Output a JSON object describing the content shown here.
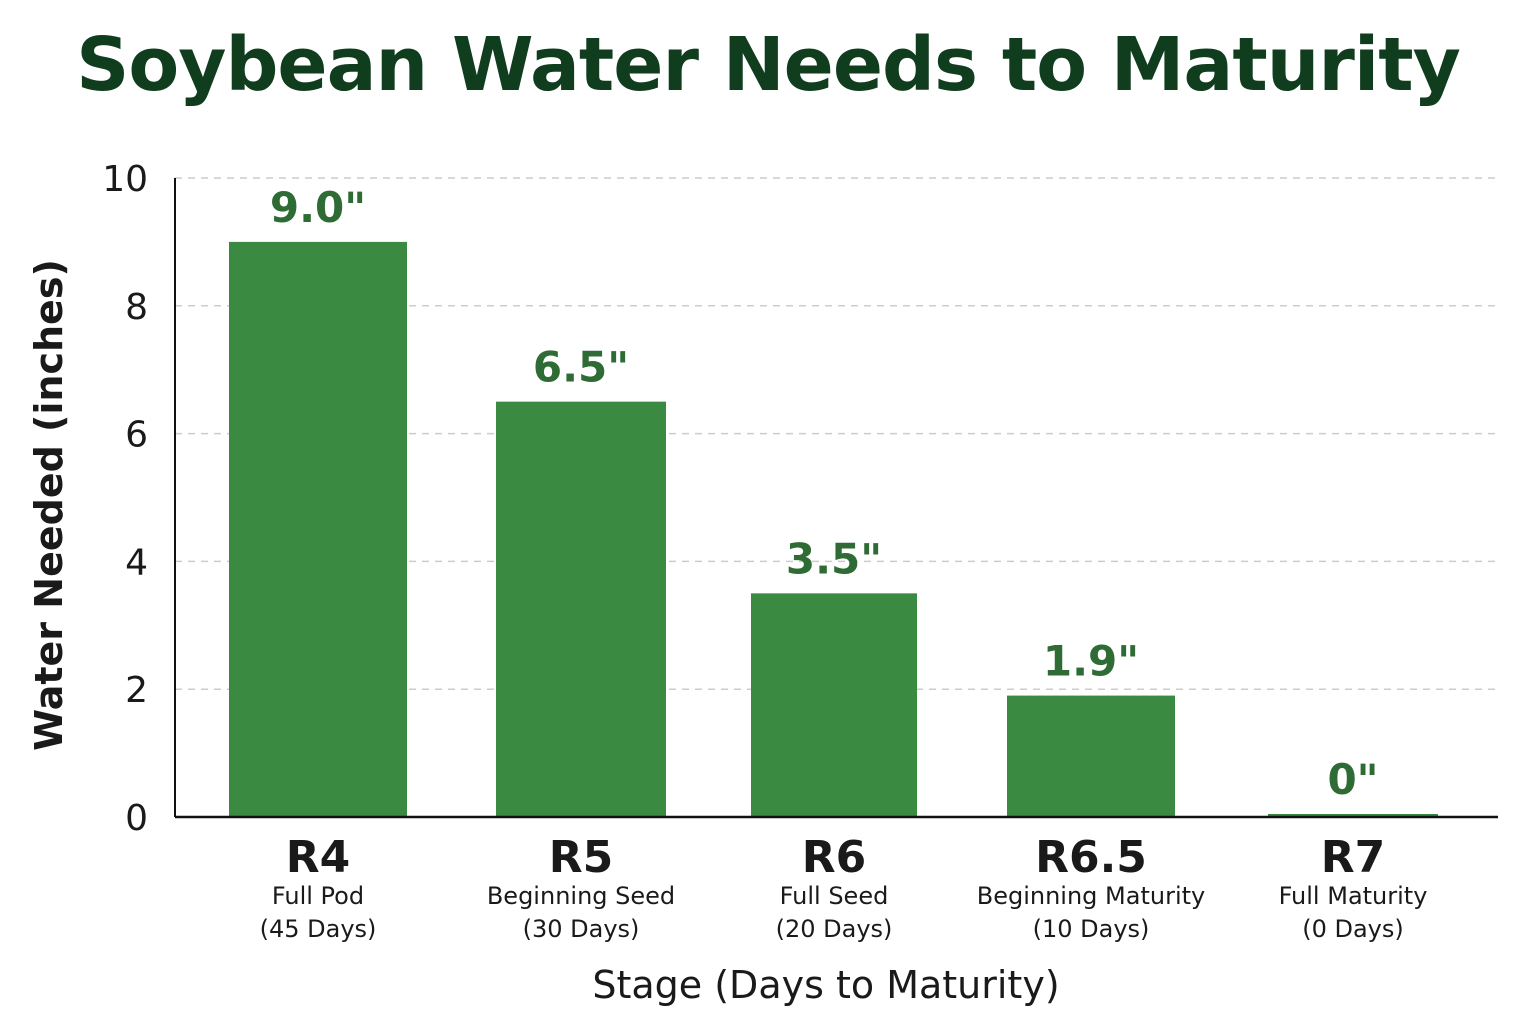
{
  "chart_data": {
    "type": "bar",
    "title": "Soybean Water Needs to Maturity",
    "xlabel": "Stage (Days to Maturity)",
    "ylabel": "Water Needed (inches)",
    "ylim": [
      0,
      10
    ],
    "yticks": [
      0,
      2,
      4,
      6,
      8,
      10
    ],
    "grid": true,
    "categories": [
      {
        "code": "R4",
        "name": "Full Pod",
        "days": "(45 Days)"
      },
      {
        "code": "R5",
        "name": "Beginning Seed",
        "days": "(30 Days)"
      },
      {
        "code": "R6",
        "name": "Full Seed",
        "days": "(20 Days)"
      },
      {
        "code": "R6.5",
        "name": "Beginning Maturity",
        "days": "(10 Days)"
      },
      {
        "code": "R7",
        "name": "Full Maturity",
        "days": "(0 Days)"
      }
    ],
    "values": [
      9.0,
      6.5,
      3.5,
      1.9,
      0
    ],
    "value_labels": [
      "9.0\"",
      "6.5\"",
      "3.5\"",
      "1.9\"",
      "0\""
    ],
    "colors": {
      "bar": "#3a8a41",
      "value_label": "#2e6b35",
      "title": "#0f3d1e",
      "grid": "#cccccc"
    }
  }
}
